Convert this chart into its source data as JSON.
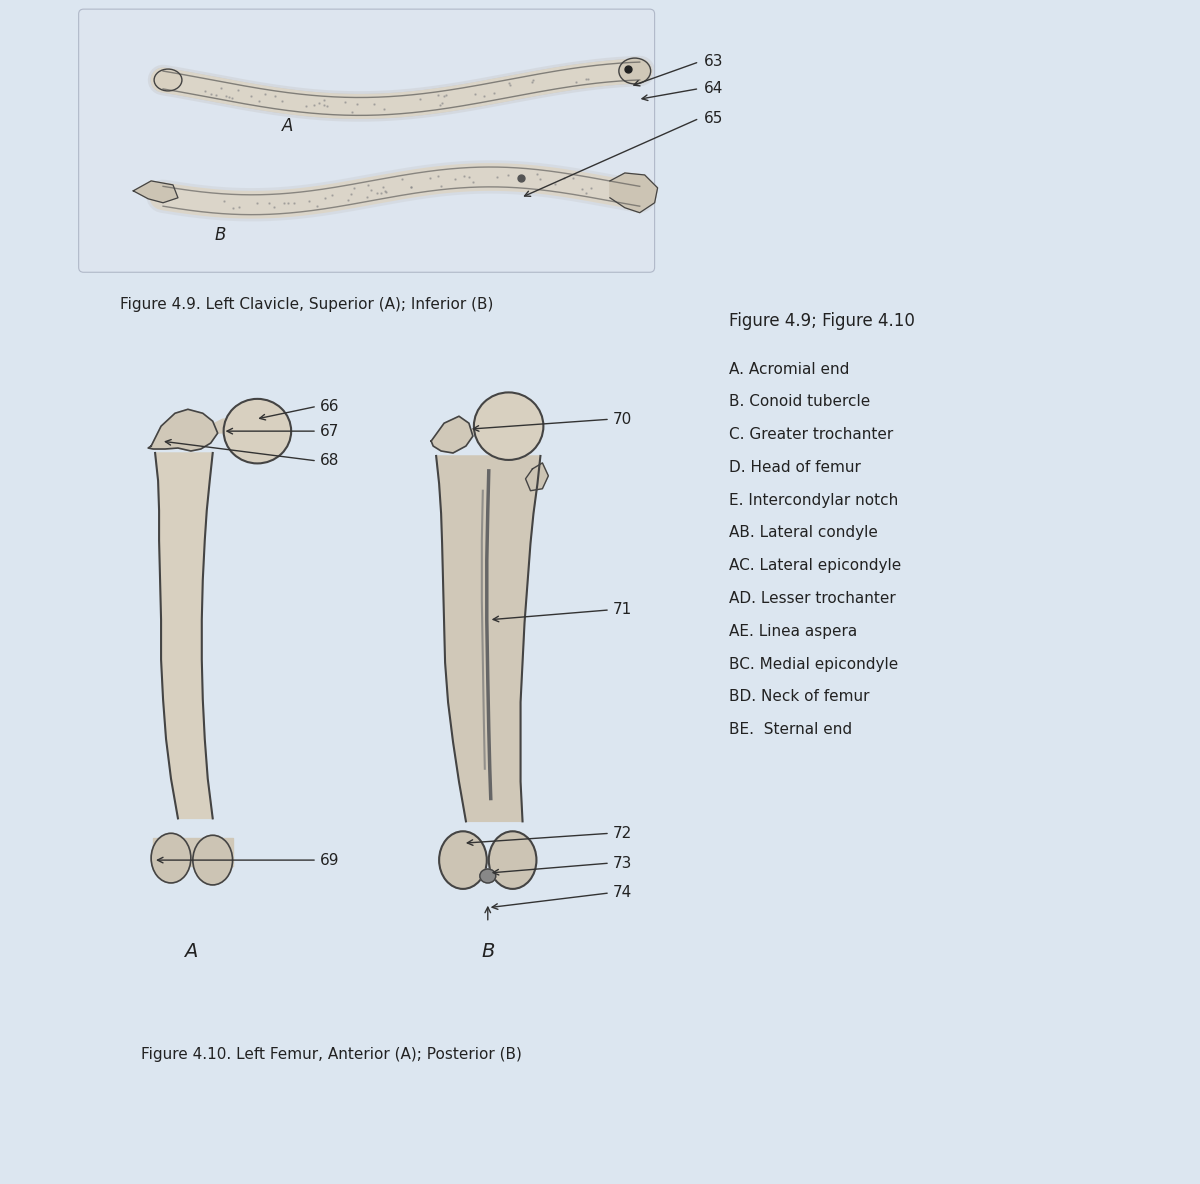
{
  "background_color": "#dce6f0",
  "fig_width": 12.0,
  "fig_height": 11.84,
  "caption_49": "Figure 4.9. Left Clavicle, Superior (A); Inferior (B)",
  "caption_410": "Figure 4.10. Left Femur, Anterior (A); Posterior (B)",
  "legend_title": "Figure 4.9; Figure 4.10",
  "legend_items": [
    "A. Acromial end",
    "B. Conoid tubercle",
    "C. Greater trochanter",
    "D. Head of femur",
    "E. Intercondylar notch",
    "AB. Lateral condyle",
    "AC. Lateral epicondyle",
    "AD. Lesser trochanter",
    "AE. Linea aspera",
    "BC. Medial epicondyle",
    "BD. Neck of femur",
    "BE.  Sternal end"
  ],
  "line_color": "#333333",
  "text_color": "#222222",
  "bone_fill": "#d8d0c0",
  "bone_dark": "#a09080",
  "bone_outline": "#444444"
}
